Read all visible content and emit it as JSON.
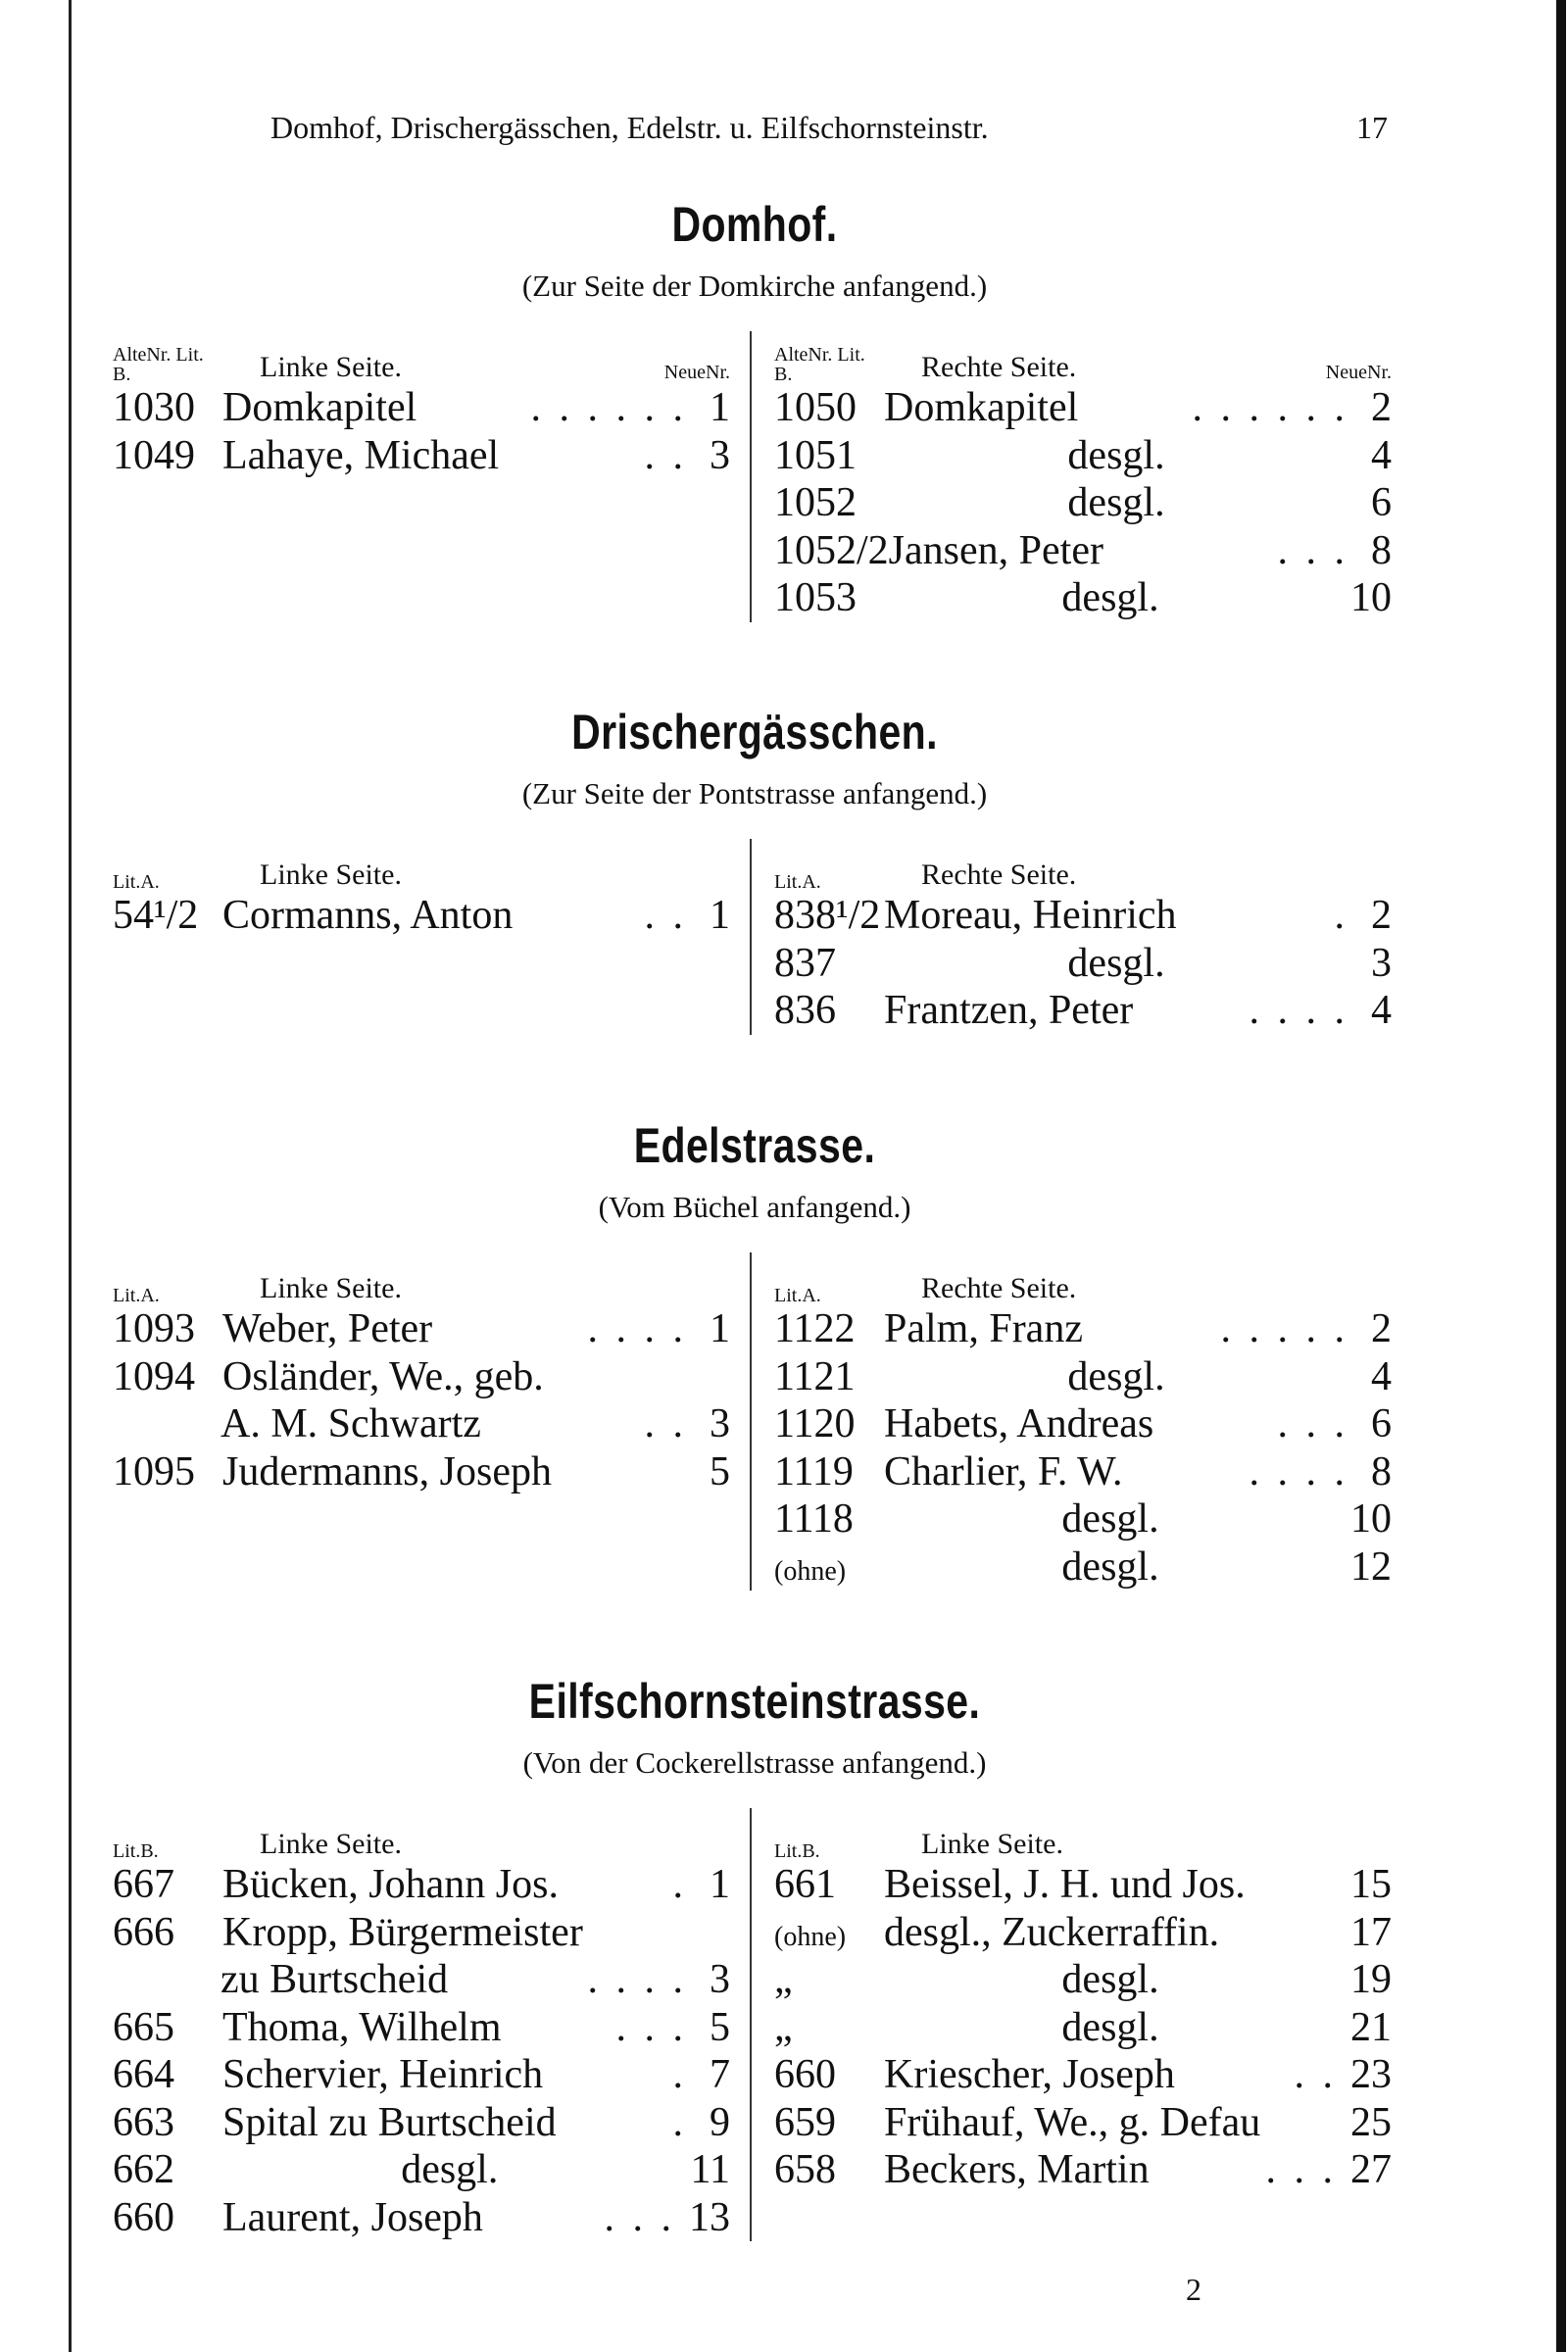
{
  "running_head": {
    "title": "Domhof, Drischergässchen, Edelstr. u. Eilfschornsteinstr.",
    "page": "17"
  },
  "sections": [
    {
      "title": "Domhof.",
      "subtitle": "(Zur Seite der Domkirche anfangend.)",
      "left": {
        "lit": "AlteNr. Lit. B.",
        "label": "Linke Seite.",
        "neue": "NeueNr.",
        "rows": [
          {
            "lit": "1030",
            "name": "Domkapitel",
            "leader": ". . . . . .",
            "neue": "1"
          },
          {
            "lit": "1049",
            "name": "Lahaye, Michael",
            "leader": ". .",
            "neue": "3"
          }
        ]
      },
      "right": {
        "lit": "AlteNr. Lit. B.",
        "label": "Rechte Seite.",
        "neue": "NeueNr.",
        "rows": [
          {
            "lit": "1050",
            "name": "Domkapitel",
            "leader": ". . . . . .",
            "neue": "2"
          },
          {
            "lit": "1051",
            "name": "desgl.",
            "leader": "",
            "neue": "4"
          },
          {
            "lit": "1052",
            "name": "desgl.",
            "leader": "",
            "neue": "6"
          },
          {
            "lit": "1052/2",
            "name": "Jansen, Peter",
            "leader": ". . .",
            "neue": "8"
          },
          {
            "lit": "1053",
            "name": "desgl.",
            "leader": "",
            "neue": "10"
          }
        ]
      }
    },
    {
      "title": "Drischergässchen.",
      "subtitle": "(Zur Seite der Pontstrasse anfangend.)",
      "left": {
        "lit": "Lit.A.",
        "label": "Linke Seite.",
        "neue": "",
        "rows": [
          {
            "lit": "54¹/2",
            "name": "Cormanns, Anton",
            "leader": ". .",
            "neue": "1"
          }
        ]
      },
      "right": {
        "lit": "Lit.A.",
        "label": "Rechte Seite.",
        "neue": "",
        "rows": [
          {
            "lit": "838¹/2",
            "name": "Moreau, Heinrich",
            "leader": ".",
            "neue": "2"
          },
          {
            "lit": "837",
            "name": "desgl.",
            "leader": "",
            "neue": "3"
          },
          {
            "lit": "836",
            "name": "Frantzen, Peter",
            "leader": ". . . .",
            "neue": "4"
          }
        ]
      }
    },
    {
      "title": "Edelstrasse.",
      "subtitle": "(Vom Büchel anfangend.)",
      "left": {
        "lit": "Lit.A.",
        "label": "Linke Seite.",
        "neue": "",
        "rows": [
          {
            "lit": "1093",
            "name": "Weber, Peter",
            "leader": ". . . .",
            "neue": "1"
          },
          {
            "lit": "1094",
            "name": "Osländer, We., geb.",
            "leader": "",
            "neue": ""
          },
          {
            "lit": "",
            "name": "A. M. Schwartz",
            "leader": ". .",
            "neue": "3",
            "continuation": true
          },
          {
            "lit": "1095",
            "name": "Judermanns, Joseph",
            "leader": "",
            "neue": "5"
          }
        ]
      },
      "right": {
        "lit": "Lit.A.",
        "label": "Rechte Seite.",
        "neue": "",
        "rows": [
          {
            "lit": "1122",
            "name": "Palm, Franz",
            "leader": ". . . . .",
            "neue": "2"
          },
          {
            "lit": "1121",
            "name": "desgl.",
            "leader": "",
            "neue": "4"
          },
          {
            "lit": "1120",
            "name": "Habets, Andreas",
            "leader": ". . .",
            "neue": "6"
          },
          {
            "lit": "1119",
            "name": "Charlier, F. W.",
            "leader": ". . . .",
            "neue": "8"
          },
          {
            "lit": "1118",
            "name": "desgl.",
            "leader": "",
            "neue": "10"
          },
          {
            "lit": "(ohne)",
            "name": "desgl.",
            "leader": "",
            "neue": "12"
          }
        ]
      }
    },
    {
      "title": "Eilfschornsteinstrasse.",
      "subtitle": "(Von der Cockerellstrasse anfangend.)",
      "left": {
        "lit": "Lit.B.",
        "label": "Linke Seite.",
        "neue": "",
        "rows": [
          {
            "lit": "667",
            "name": "Bücken, Johann Jos.",
            "leader": ".",
            "neue": "1"
          },
          {
            "lit": "666",
            "name": "Kropp, Bürgermeister",
            "leader": "",
            "neue": ""
          },
          {
            "lit": "",
            "name": "zu Burtscheid",
            "leader": ". . . .",
            "neue": "3",
            "continuation": true
          },
          {
            "lit": "665",
            "name": "Thoma, Wilhelm",
            "leader": ". . .",
            "neue": "5"
          },
          {
            "lit": "664",
            "name": "Schervier, Heinrich",
            "leader": ".",
            "neue": "7"
          },
          {
            "lit": "663",
            "name": "Spital zu Burtscheid",
            "leader": ".",
            "neue": "9"
          },
          {
            "lit": "662",
            "name": "desgl.",
            "leader": "",
            "neue": "11"
          },
          {
            "lit": "660",
            "name": "Laurent, Joseph",
            "leader": ". . .",
            "neue": "13"
          }
        ]
      },
      "right": {
        "lit": "Lit.B.",
        "label": "Linke Seite.",
        "neue": "",
        "rows": [
          {
            "lit": "661",
            "name": "Beissel, J. H. und Jos.",
            "leader": "",
            "neue": "15"
          },
          {
            "lit": "(ohne)",
            "name": "desgl., Zuckerraffin.",
            "leader": "",
            "neue": "17"
          },
          {
            "lit": "„",
            "name": "desgl.",
            "leader": "",
            "neue": "19"
          },
          {
            "lit": "„",
            "name": "desgl.",
            "leader": "",
            "neue": "21"
          },
          {
            "lit": "660",
            "name": "Kriescher, Joseph",
            "leader": ". .",
            "neue": "23"
          },
          {
            "lit": "659",
            "name": "Frühauf, We., g. Defau",
            "leader": "",
            "neue": "25"
          },
          {
            "lit": "658",
            "name": "Beckers, Martin",
            "leader": ". . .",
            "neue": "27"
          }
        ]
      }
    }
  ],
  "signature_mark": "2"
}
